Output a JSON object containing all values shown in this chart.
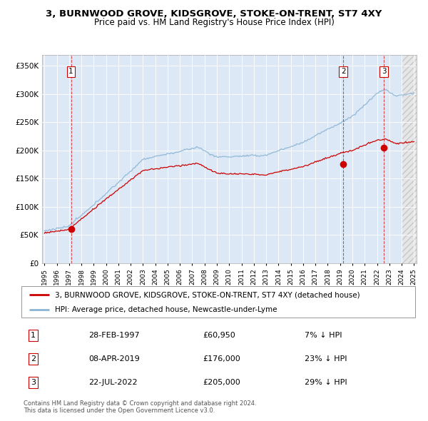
{
  "title1": "3, BURNWOOD GROVE, KIDSGROVE, STOKE-ON-TRENT, ST7 4XY",
  "title2": "Price paid vs. HM Land Registry's House Price Index (HPI)",
  "ylim": [
    0,
    370000
  ],
  "yticks": [
    0,
    50000,
    100000,
    150000,
    200000,
    250000,
    300000,
    350000
  ],
  "ytick_labels": [
    "£0",
    "£50K",
    "£100K",
    "£150K",
    "£200K",
    "£250K",
    "£300K",
    "£350K"
  ],
  "sale_dates": [
    1997.16,
    2019.27,
    2022.55
  ],
  "sale_prices": [
    60950,
    176000,
    205000
  ],
  "sale_labels": [
    "1",
    "2",
    "3"
  ],
  "hpi_color": "#8ab4d4",
  "sale_color": "#cc0000",
  "dashed_color": "#cc0000",
  "bg_plot": "#dce8f5",
  "legend_label_red": "3, BURNWOOD GROVE, KIDSGROVE, STOKE-ON-TRENT, ST7 4XY (detached house)",
  "legend_label_blue": "HPI: Average price, detached house, Newcastle-under-Lyme",
  "table_rows": [
    [
      "1",
      "28-FEB-1997",
      "£60,950",
      "7% ↓ HPI"
    ],
    [
      "2",
      "08-APR-2019",
      "£176,000",
      "23% ↓ HPI"
    ],
    [
      "3",
      "22-JUL-2022",
      "£205,000",
      "29% ↓ HPI"
    ]
  ],
  "footnote1": "Contains HM Land Registry data © Crown copyright and database right 2024.",
  "footnote2": "This data is licensed under the Open Government Licence v3.0."
}
